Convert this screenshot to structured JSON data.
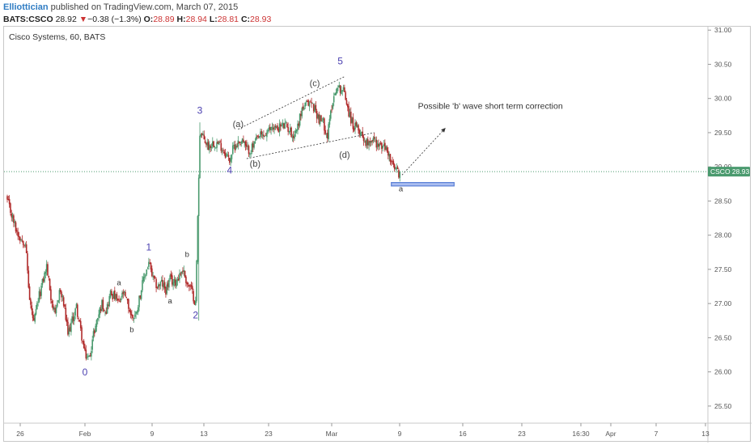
{
  "header": {
    "author": "Elliottician",
    "published_text": " published on TradingView.com, March 07, 2015",
    "symbol": "BATS:CSCO",
    "last": "28.92",
    "change_arrow": "▼",
    "change": "−0.38 (−1.3%)",
    "o_label": "O:",
    "o_value": "28.89",
    "h_label": "H:",
    "h_value": "28.94",
    "l_label": "L:",
    "l_value": "28.81",
    "c_label": "C:",
    "c_value": "28.93"
  },
  "pane_title": "Cisco Systems, 60, BATS",
  "price_badge": "CSCO 28.93",
  "annotation": "Possible 'b' wave short term correction",
  "colors": {
    "up": "#4a9a6e",
    "down": "#b02a2a",
    "wave": "#4a3fb0",
    "price_line": "#4a9a6e",
    "target_box": "#5a7fd6"
  },
  "chart_data": {
    "type": "candlestick",
    "title": "Cisco Systems, 60, BATS",
    "symbol": "CSCO",
    "interval": "60",
    "current_price": 28.93,
    "ylim": [
      25.25,
      31.05
    ],
    "y_ticks": [
      "31.00",
      "30.50",
      "30.00",
      "29.50",
      "29.00",
      "28.50",
      "28.00",
      "27.50",
      "27.00",
      "26.50",
      "26.00",
      "25.50"
    ],
    "x_ticks": [
      "26",
      "Feb",
      "9",
      "13",
      "23",
      "Mar",
      "9",
      "16",
      "23",
      "16:30",
      "Apr",
      "7",
      "13"
    ],
    "close_path": [
      [
        0,
        28.5
      ],
      [
        4,
        28.3
      ],
      [
        9,
        28.05
      ],
      [
        13,
        27.95
      ],
      [
        17,
        27.9
      ],
      [
        21,
        27.05
      ],
      [
        25,
        26.7
      ],
      [
        29,
        27.05
      ],
      [
        33,
        27.3
      ],
      [
        37,
        27.55
      ],
      [
        41,
        27.1
      ],
      [
        45,
        26.8
      ],
      [
        49,
        27.2
      ],
      [
        53,
        27.0
      ],
      [
        57,
        26.55
      ],
      [
        61,
        26.75
      ],
      [
        65,
        26.95
      ],
      [
        69,
        26.6
      ],
      [
        73,
        26.25
      ],
      [
        77,
        26.2
      ],
      [
        81,
        26.55
      ],
      [
        85,
        26.8
      ],
      [
        89,
        27.0
      ],
      [
        93,
        26.9
      ],
      [
        97,
        27.15
      ],
      [
        101,
        27.1
      ],
      [
        105,
        27.0
      ],
      [
        109,
        27.15
      ],
      [
        113,
        27.0
      ],
      [
        117,
        26.8
      ],
      [
        121,
        26.85
      ],
      [
        125,
        27.15
      ],
      [
        129,
        27.4
      ],
      [
        133,
        27.6
      ],
      [
        137,
        27.35
      ],
      [
        141,
        27.25
      ],
      [
        145,
        27.3
      ],
      [
        149,
        27.2
      ],
      [
        153,
        27.35
      ],
      [
        157,
        27.3
      ],
      [
        161,
        27.4
      ],
      [
        165,
        27.5
      ],
      [
        169,
        27.3
      ],
      [
        173,
        27.2
      ],
      [
        177,
        27.0
      ],
      [
        181,
        29.5
      ],
      [
        185,
        29.4
      ],
      [
        189,
        29.3
      ],
      [
        193,
        29.35
      ],
      [
        197,
        29.35
      ],
      [
        201,
        29.3
      ],
      [
        205,
        29.2
      ],
      [
        209,
        29.1
      ],
      [
        213,
        29.3
      ],
      [
        217,
        29.35
      ],
      [
        221,
        29.4
      ],
      [
        225,
        29.25
      ],
      [
        229,
        29.25
      ],
      [
        233,
        29.35
      ],
      [
        237,
        29.45
      ],
      [
        241,
        29.45
      ],
      [
        245,
        29.5
      ],
      [
        249,
        29.6
      ],
      [
        253,
        29.55
      ],
      [
        257,
        29.6
      ],
      [
        261,
        29.6
      ],
      [
        265,
        29.55
      ],
      [
        269,
        29.45
      ],
      [
        273,
        29.6
      ],
      [
        277,
        29.85
      ],
      [
        281,
        29.9
      ],
      [
        285,
        29.95
      ],
      [
        289,
        29.85
      ],
      [
        293,
        29.7
      ],
      [
        297,
        29.65
      ],
      [
        301,
        29.45
      ],
      [
        305,
        29.9
      ],
      [
        309,
        30.15
      ],
      [
        313,
        30.15
      ],
      [
        317,
        30.1
      ],
      [
        321,
        29.8
      ],
      [
        325,
        29.6
      ],
      [
        329,
        29.55
      ],
      [
        333,
        29.5
      ],
      [
        337,
        29.35
      ],
      [
        341,
        29.4
      ],
      [
        345,
        29.4
      ],
      [
        349,
        29.3
      ],
      [
        353,
        29.3
      ],
      [
        357,
        29.25
      ],
      [
        361,
        29.05
      ],
      [
        365,
        28.95
      ],
      [
        369,
        28.9
      ]
    ],
    "wave_labels": [
      {
        "text": "0",
        "x": 73,
        "y": 25.95,
        "size": "big"
      },
      {
        "text": "1",
        "x": 133,
        "y": 27.78,
        "size": "big"
      },
      {
        "text": "2",
        "x": 177,
        "y": 26.78,
        "size": "big"
      },
      {
        "text": "3",
        "x": 181,
        "y": 29.78,
        "size": "big"
      },
      {
        "text": "4",
        "x": 209,
        "y": 28.9,
        "size": "big"
      },
      {
        "text": "5",
        "x": 313,
        "y": 30.5,
        "size": "big"
      },
      {
        "text": "a",
        "x": 105,
        "y": 27.27,
        "size": "small"
      },
      {
        "text": "b",
        "x": 117,
        "y": 26.58,
        "size": "small"
      },
      {
        "text": "a",
        "x": 153,
        "y": 27.0,
        "size": "small"
      },
      {
        "text": "b",
        "x": 169,
        "y": 27.68,
        "size": "small"
      },
      {
        "text": "(a)",
        "x": 217,
        "y": 29.58,
        "size": "paren"
      },
      {
        "text": "(b)",
        "x": 233,
        "y": 29.0,
        "size": "paren"
      },
      {
        "text": "(c)",
        "x": 289,
        "y": 30.18,
        "size": "paren"
      },
      {
        "text": "(d)",
        "x": 317,
        "y": 29.13,
        "size": "paren"
      },
      {
        "text": "a",
        "x": 370,
        "y": 28.64,
        "size": "small"
      }
    ],
    "trend_lines": [
      {
        "x1": 217,
        "y1": 29.55,
        "x2": 317,
        "y2": 30.32
      },
      {
        "x1": 225,
        "y1": 29.12,
        "x2": 345,
        "y2": 29.5
      }
    ],
    "projection": {
      "x1": 371,
      "y1": 28.88,
      "x2": 412,
      "y2": 29.57
    },
    "target_zone": {
      "x1": 361,
      "y1": 28.72,
      "x2": 420,
      "y2": 28.77
    },
    "annotation_pos": {
      "x": 386,
      "y": 29.85
    }
  }
}
